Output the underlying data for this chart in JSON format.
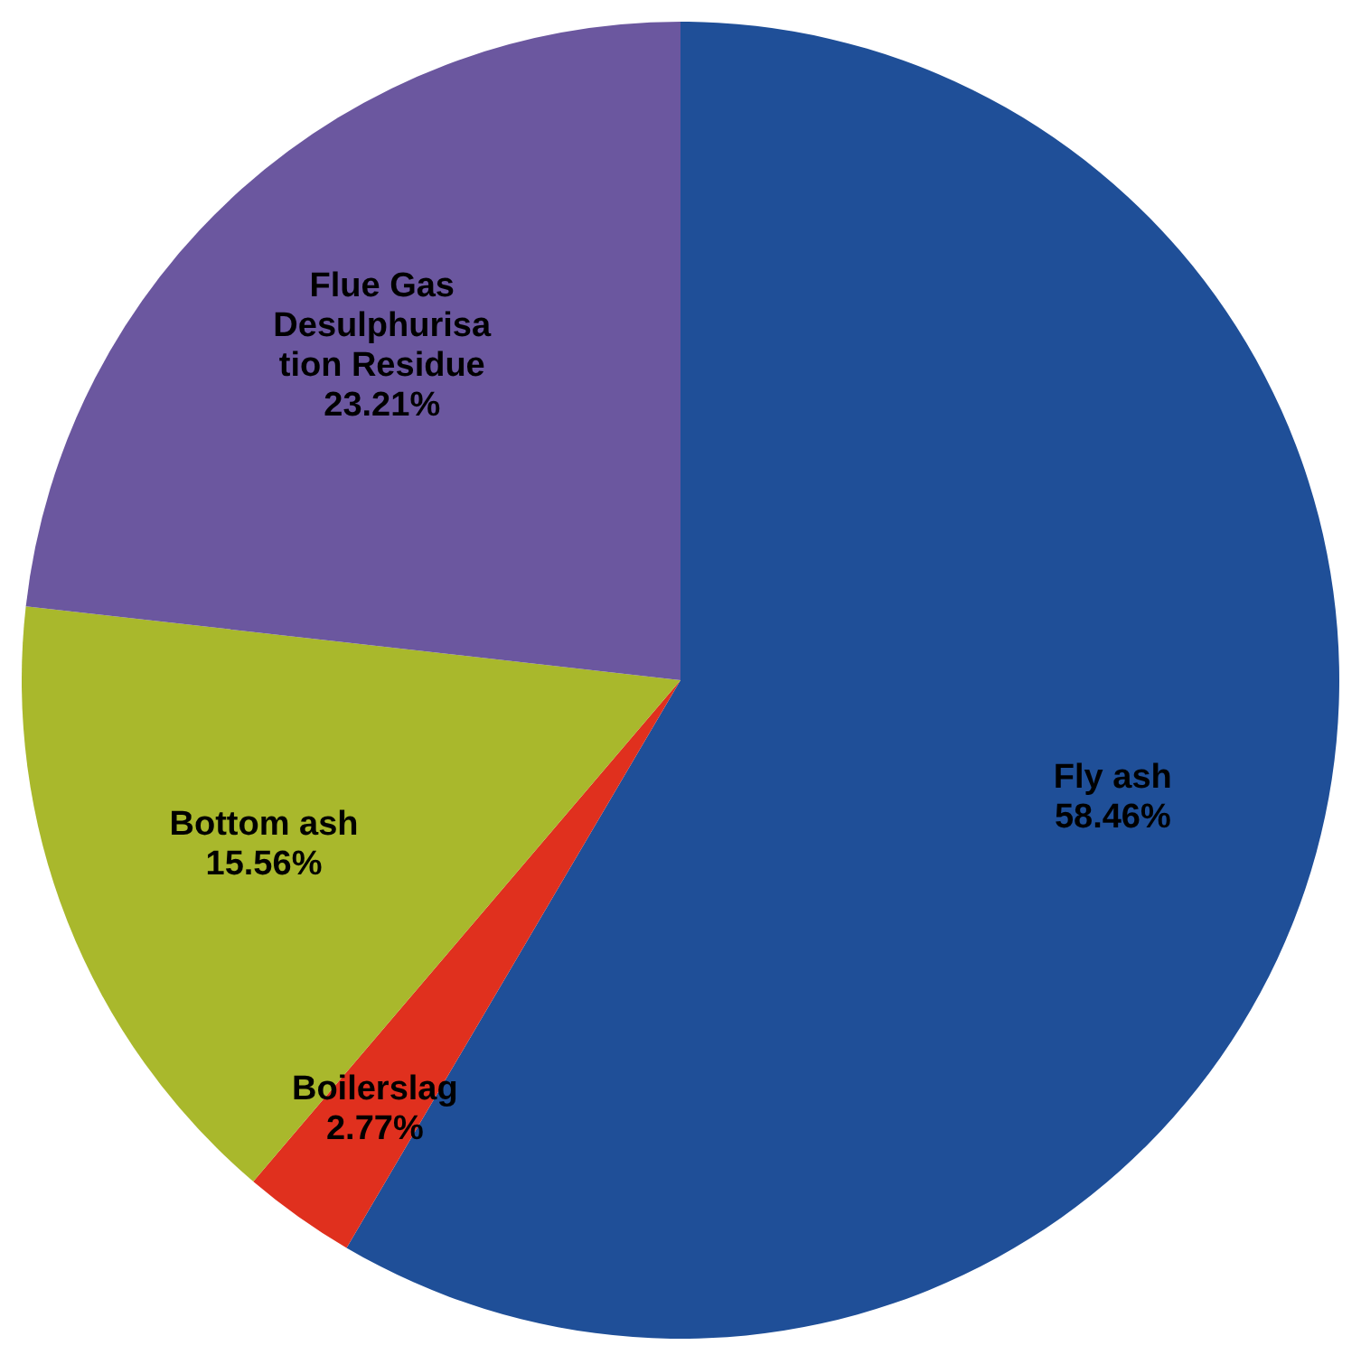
{
  "chart_data": {
    "type": "pie",
    "categories": [
      "Fly ash",
      "Boilerslag",
      "Bottom ash",
      "Flue Gas Desulphurisation Residue"
    ],
    "values": [
      58.46,
      2.77,
      15.56,
      23.21
    ],
    "value_labels": [
      "58.46%",
      "2.77%",
      "15.56%",
      "23.21%"
    ],
    "colors": [
      "#1f4f98",
      "#e0301e",
      "#a9b82c",
      "#6b579f"
    ],
    "legend": false
  }
}
